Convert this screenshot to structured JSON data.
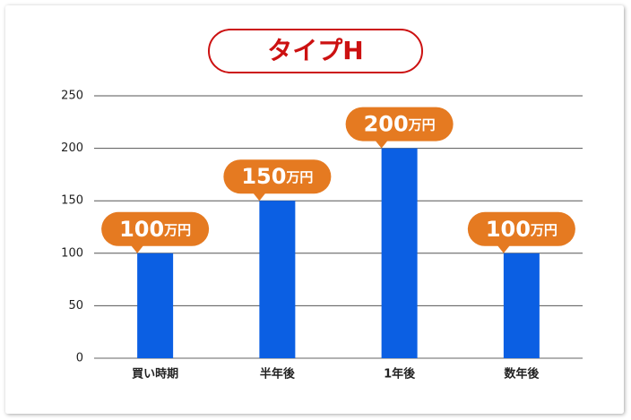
{
  "chart_data": {
    "type": "bar",
    "title": "タイプH",
    "categories": [
      "買い時期",
      "半年後",
      "1年後",
      "数年後"
    ],
    "values": [
      100,
      150,
      200,
      100
    ],
    "value_labels": [
      "100万円",
      "150万円",
      "200万円",
      "100万円"
    ],
    "color": "#0b5fe3",
    "label_color": "#e57a21",
    "title_color": "#cc1111",
    "ylim": [
      0,
      250
    ],
    "yticks": [
      0,
      50,
      100,
      150,
      200,
      250
    ],
    "grid": true
  }
}
